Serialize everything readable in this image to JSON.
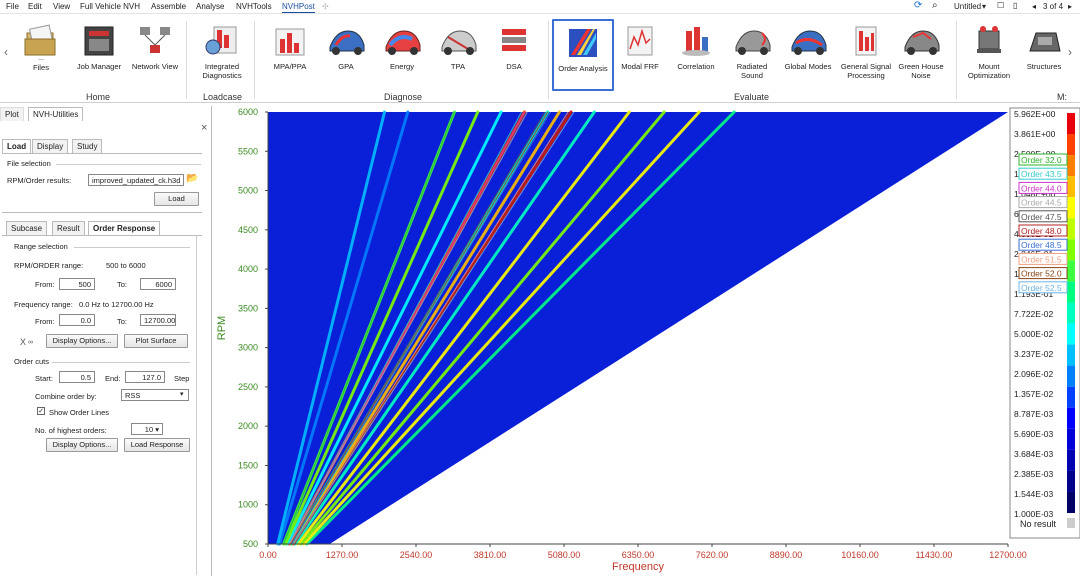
{
  "menu": {
    "items": [
      "File",
      "Edit",
      "View",
      "Full Vehicle NVH",
      "Assemble",
      "Analyse",
      "NVHTools",
      "NVHPost"
    ],
    "active": "NVHPost",
    "right": {
      "doc_title": "Untitled",
      "pager": "3 of 4"
    }
  },
  "ribbon": {
    "tools": [
      {
        "label": "Files",
        "sub": "..."
      },
      {
        "label": "Job Manager"
      },
      {
        "label": "Network View"
      },
      {
        "label": "Integrated Diagnostics"
      },
      {
        "label": "MPA/PPA"
      },
      {
        "label": "GPA"
      },
      {
        "label": "Energy"
      },
      {
        "label": "TPA"
      },
      {
        "label": "DSA"
      },
      {
        "label": "Order Analysis"
      },
      {
        "label": "Modal FRF"
      },
      {
        "label": "Correlation"
      },
      {
        "label": "Radiated Sound"
      },
      {
        "label": "Global Modes"
      },
      {
        "label": "General Signal Processing"
      },
      {
        "label": "Green House Noise"
      },
      {
        "label": "Mount Optimization"
      },
      {
        "label": "Structures"
      }
    ],
    "groups": [
      "Home",
      "Loadcase",
      "Diagnose",
      "Evaluate",
      "M:"
    ]
  },
  "panel": {
    "top_tabs": [
      "Plot",
      "NVH-Utilities"
    ],
    "close": "×",
    "tabs": [
      "Load",
      "Display",
      "Study"
    ],
    "file_selection": "File selection",
    "rpm_label": "RPM/Order results:",
    "rpm_file": "improved_updated_ck.h3d",
    "load_btn": "Load",
    "sub_tabs": [
      "Subcase",
      "Result",
      "Order Response"
    ],
    "range_selection": "Range selection",
    "rpm_range_label": "RPM/ORDER range:",
    "rpm_range_value": "500 to 6000",
    "from_label": "From:",
    "to_label": "To:",
    "rpm_from": "500",
    "rpm_to": "6000",
    "freq_range_label": "Frequency range:",
    "freq_range_value": "0.0 Hz to 12700.00 Hz",
    "freq_from": "0.0",
    "freq_to": "12700.00",
    "xaxis_icon": "X",
    "display_options": "Display Options...",
    "plot_surface": "Plot Surface",
    "order_cuts": "Order cuts",
    "start_label": "Start:",
    "start_value": "0.5",
    "end_label": "End:",
    "end_value": "127.0",
    "step_label": "Step",
    "combine_label": "Combine order by:",
    "combine_value": "RSS",
    "show_order_lines": "Show Order Lines",
    "highest_label": "No. of highest orders:",
    "highest_value": "10",
    "display_options2": "Display Options...",
    "load_response": "Load Response"
  },
  "chart_data": {
    "type": "heatmap",
    "xlabel": "Frequency",
    "ylabel": "RPM",
    "xlim": [
      0,
      12700
    ],
    "ylim": [
      500,
      6000
    ],
    "x_ticks": [
      "0.00",
      "1270.00",
      "2540.00",
      "3810.00",
      "5080.00",
      "6350.00",
      "7620.00",
      "8890.00",
      "10160.00",
      "11430.00",
      "12700.00"
    ],
    "y_ticks": [
      "500",
      "1000",
      "1500",
      "2000",
      "2500",
      "3000",
      "3500",
      "4000",
      "4500",
      "5000",
      "5500",
      "6000"
    ],
    "colorbar": [
      "5.962E+00",
      "3.861E+00",
      "2.500E+00",
      "1.619E+00",
      "1.048E+00",
      "6.788E-01",
      "4.395E-01",
      "2.846E-01",
      "1.843E-01",
      "1.193E-01",
      "7.722E-02",
      "5.000E-02",
      "3.237E-02",
      "2.096E-02",
      "1.357E-02",
      "8.787E-03",
      "5.690E-03",
      "3.684E-03",
      "2.385E-03",
      "1.544E-03",
      "1.000E-03"
    ],
    "colorbar_colors": [
      "#e8000b",
      "#ff4000",
      "#ff8000",
      "#ffbf00",
      "#ffff00",
      "#bfff00",
      "#80ff00",
      "#40ff40",
      "#00ff80",
      "#00ffbf",
      "#00ffff",
      "#00bfff",
      "#0080ff",
      "#0040ff",
      "#0000ff",
      "#0000d9",
      "#0000b3",
      "#00008c",
      "#000066"
    ],
    "no_result": "No result",
    "legend": [
      {
        "name": "Order 32.0",
        "color": "#2ab52a"
      },
      {
        "name": "Order 43.5",
        "color": "#33cccc"
      },
      {
        "name": "Order 44.0",
        "color": "#cc33cc"
      },
      {
        "name": "Order 44.5",
        "color": "#aaaaaa"
      },
      {
        "name": "Order 47.5",
        "color": "#555555"
      },
      {
        "name": "Order 48.0",
        "color": "#b22222"
      },
      {
        "name": "Order 48.5",
        "color": "#3a6fd4"
      },
      {
        "name": "Order 51.5",
        "color": "#f0a080"
      },
      {
        "name": "Order 52.0",
        "color": "#8b4513"
      },
      {
        "name": "Order 52.5",
        "color": "#6ab4e8"
      }
    ],
    "orders_shown": [
      32.0,
      43.5,
      44.0,
      44.5,
      47.5,
      48.0,
      48.5,
      51.5,
      52.0,
      52.5
    ],
    "highlight_orders": [
      {
        "order": 80,
        "color": "#00ff80"
      },
      {
        "order": 74,
        "color": "#ffff00"
      },
      {
        "order": 68,
        "color": "#80ff00"
      },
      {
        "order": 62,
        "color": "#ffff00"
      },
      {
        "order": 56,
        "color": "#00ffbf"
      },
      {
        "order": 52,
        "color": "#e8000b"
      },
      {
        "order": 50,
        "color": "#ffbf00"
      },
      {
        "order": 48,
        "color": "#00ffbf"
      },
      {
        "order": 44,
        "color": "#ff4000"
      },
      {
        "order": 40,
        "color": "#00ffff"
      },
      {
        "order": 36,
        "color": "#80ff00"
      },
      {
        "order": 32,
        "color": "#40ff40"
      },
      {
        "order": 24,
        "color": "#0080ff"
      },
      {
        "order": 20,
        "color": "#00bfff"
      }
    ]
  }
}
